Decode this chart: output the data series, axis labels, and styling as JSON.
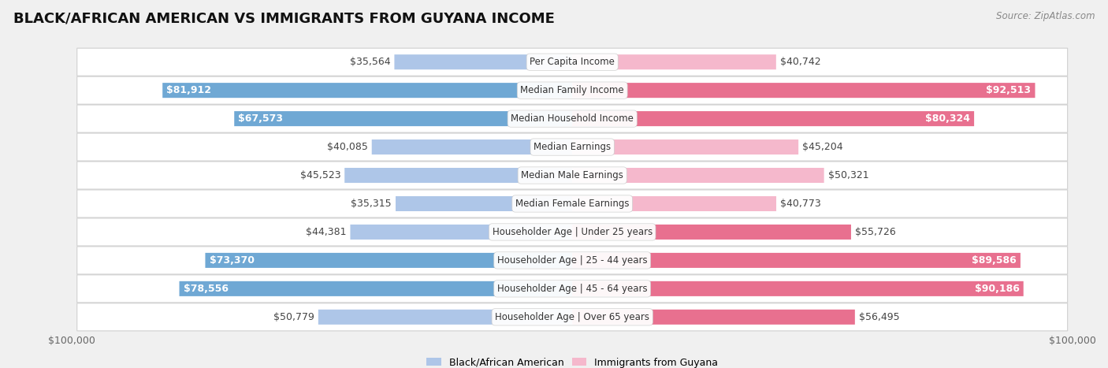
{
  "title": "BLACK/AFRICAN AMERICAN VS IMMIGRANTS FROM GUYANA INCOME",
  "source": "Source: ZipAtlas.com",
  "categories": [
    "Per Capita Income",
    "Median Family Income",
    "Median Household Income",
    "Median Earnings",
    "Median Male Earnings",
    "Median Female Earnings",
    "Householder Age | Under 25 years",
    "Householder Age | 25 - 44 years",
    "Householder Age | 45 - 64 years",
    "Householder Age | Over 65 years"
  ],
  "left_values": [
    35564,
    81912,
    67573,
    40085,
    45523,
    35315,
    44381,
    73370,
    78556,
    50779
  ],
  "right_values": [
    40742,
    92513,
    80324,
    45204,
    50321,
    40773,
    55726,
    89586,
    90186,
    56495
  ],
  "left_labels": [
    "$35,564",
    "$81,912",
    "$67,573",
    "$40,085",
    "$45,523",
    "$35,315",
    "$44,381",
    "$73,370",
    "$78,556",
    "$50,779"
  ],
  "right_labels": [
    "$40,742",
    "$92,513",
    "$80,324",
    "$45,204",
    "$50,321",
    "$40,773",
    "$55,726",
    "$89,586",
    "$90,186",
    "$56,495"
  ],
  "left_inside": [
    false,
    true,
    true,
    false,
    false,
    false,
    false,
    true,
    true,
    false
  ],
  "right_inside": [
    false,
    true,
    true,
    false,
    false,
    false,
    false,
    true,
    true,
    false
  ],
  "max_value": 100000,
  "left_color_light": "#aec6e8",
  "left_color_dark": "#6fa8d4",
  "right_color_light": "#f5b8cc",
  "right_color_dark": "#e8708f",
  "legend_left": "Black/African American",
  "legend_right": "Immigrants from Guyana",
  "bg_color": "#f0f0f0",
  "row_bg_color": "#ffffff",
  "row_border_color": "#d0d0d0",
  "title_fontsize": 13,
  "label_fontsize": 9,
  "axis_fontsize": 9,
  "inside_threshold": 55000
}
